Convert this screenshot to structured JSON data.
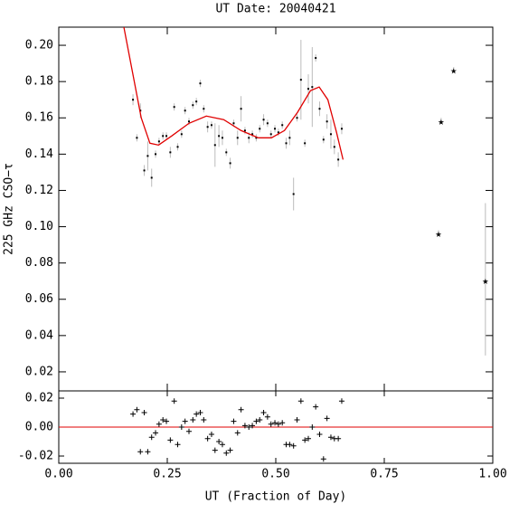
{
  "chart_data": {
    "type": "scatter",
    "title": "UT Date: 20040421",
    "xlabel": "UT (Fraction of Day)",
    "ylabel": "225 GHz CSO−τ",
    "xlim": [
      0,
      1
    ],
    "xticks": [
      {
        "value": 0,
        "label": "0.00"
      },
      0.25,
      {
        "value": 0.5,
        "label": "0.50"
      },
      0.75,
      {
        "value": 1,
        "label": "1.00"
      }
    ],
    "ylim": [
      0.0095,
      0.21
    ],
    "yticks": [
      0.02,
      0.04,
      0.06,
      0.08,
      {
        "value": 0.1,
        "label": "0.10"
      },
      0.12,
      0.14,
      0.16,
      0.18,
      {
        "value": 0.2,
        "label": "0.20"
      }
    ],
    "color": "#000000",
    "error_color": "#bbbbbb",
    "x": [
      0.171,
      0.18,
      0.188,
      0.197,
      0.205,
      0.214,
      0.223,
      0.231,
      0.24,
      0.248,
      0.257,
      0.266,
      0.274,
      0.283,
      0.291,
      0.3,
      0.309,
      0.317,
      0.326,
      0.334,
      0.343,
      0.352,
      0.36,
      0.369,
      0.377,
      0.386,
      0.395,
      0.403,
      0.412,
      0.42,
      0.429,
      0.438,
      0.446,
      0.455,
      0.463,
      0.472,
      0.481,
      0.489,
      0.498,
      0.506,
      0.515,
      0.524,
      0.532,
      0.541,
      0.549,
      0.558,
      0.567,
      0.575,
      0.584,
      0.592,
      0.601,
      0.61,
      0.618,
      0.627,
      0.635,
      0.644,
      0.652
    ],
    "values": [
      0.17,
      0.149,
      0.164,
      0.131,
      0.139,
      0.127,
      0.14,
      0.147,
      0.15,
      0.15,
      0.141,
      0.166,
      0.144,
      0.151,
      0.164,
      0.158,
      0.167,
      0.169,
      0.179,
      0.165,
      0.155,
      0.156,
      0.145,
      0.15,
      0.149,
      0.141,
      0.135,
      0.157,
      0.149,
      0.165,
      0.153,
      0.149,
      0.151,
      0.149,
      0.154,
      0.159,
      0.157,
      0.151,
      0.154,
      0.152,
      0.156,
      0.146,
      0.149,
      0.118,
      0.16,
      0.181,
      0.146,
      0.176,
      0.177,
      0.193,
      0.165,
      0.148,
      0.158,
      0.151,
      0.144,
      0.137,
      0.154
    ],
    "errors": [
      0.003,
      0.002,
      0.004,
      0.003,
      0.008,
      0.005,
      0.002,
      0.002,
      0.002,
      0.002,
      0.003,
      0.002,
      0.002,
      0.002,
      0.002,
      0.002,
      0.002,
      0.002,
      0.002,
      0.002,
      0.003,
      0.002,
      0.012,
      0.006,
      0.004,
      0.002,
      0.003,
      0.002,
      0.004,
      0.007,
      0.002,
      0.003,
      0.002,
      0.002,
      0.002,
      0.003,
      0.002,
      0.002,
      0.002,
      0.002,
      0.002,
      0.003,
      0.004,
      0.009,
      0.002,
      0.022,
      0.002,
      0.008,
      0.022,
      0.002,
      0.004,
      0.002,
      0.004,
      0.008,
      0.004,
      0.004,
      0.003
    ],
    "outliers": {
      "x": [
        0.875,
        0.881,
        0.91,
        0.983
      ],
      "values": [
        0.097,
        0.159,
        0.187,
        0.071
      ],
      "errors": [
        0.001,
        0.001,
        0.001,
        0.042
      ]
    },
    "fit": {
      "color": "#e00000",
      "x": [
        0.15,
        0.17,
        0.19,
        0.21,
        0.23,
        0.26,
        0.3,
        0.34,
        0.38,
        0.42,
        0.46,
        0.49,
        0.52,
        0.55,
        0.58,
        0.6,
        0.62,
        0.64,
        0.655
      ],
      "y": [
        0.21,
        0.185,
        0.16,
        0.146,
        0.145,
        0.15,
        0.157,
        0.161,
        0.159,
        0.153,
        0.149,
        0.149,
        0.153,
        0.163,
        0.175,
        0.177,
        0.17,
        0.152,
        0.137
      ]
    },
    "residuals": {
      "ylim": [
        -0.025,
        0.025
      ],
      "yticks": [
        0.02,
        {
          "value": 0,
          "label": "0.00"
        },
        -0.02
      ],
      "zero_color": "#e00000",
      "values": [
        0.009,
        0.012,
        -0.017,
        0.01,
        -0.017,
        -0.007,
        -0.004,
        0.002,
        0.005,
        0.004,
        -0.009,
        0.018,
        -0.012,
        0.0,
        0.004,
        -0.003,
        0.005,
        0.009,
        0.01,
        0.005,
        -0.008,
        -0.005,
        -0.016,
        -0.01,
        -0.012,
        -0.018,
        -0.016,
        0.004,
        -0.004,
        0.012,
        0.001,
        0.0,
        0.001,
        0.004,
        0.005,
        0.01,
        0.007,
        0.002,
        0.003,
        0.002,
        0.003,
        -0.012,
        -0.012,
        -0.013,
        0.005,
        0.018,
        -0.009,
        -0.008,
        0.0,
        0.014,
        -0.005,
        -0.022,
        0.006,
        -0.007,
        -0.008,
        -0.008,
        0.018
      ]
    }
  }
}
